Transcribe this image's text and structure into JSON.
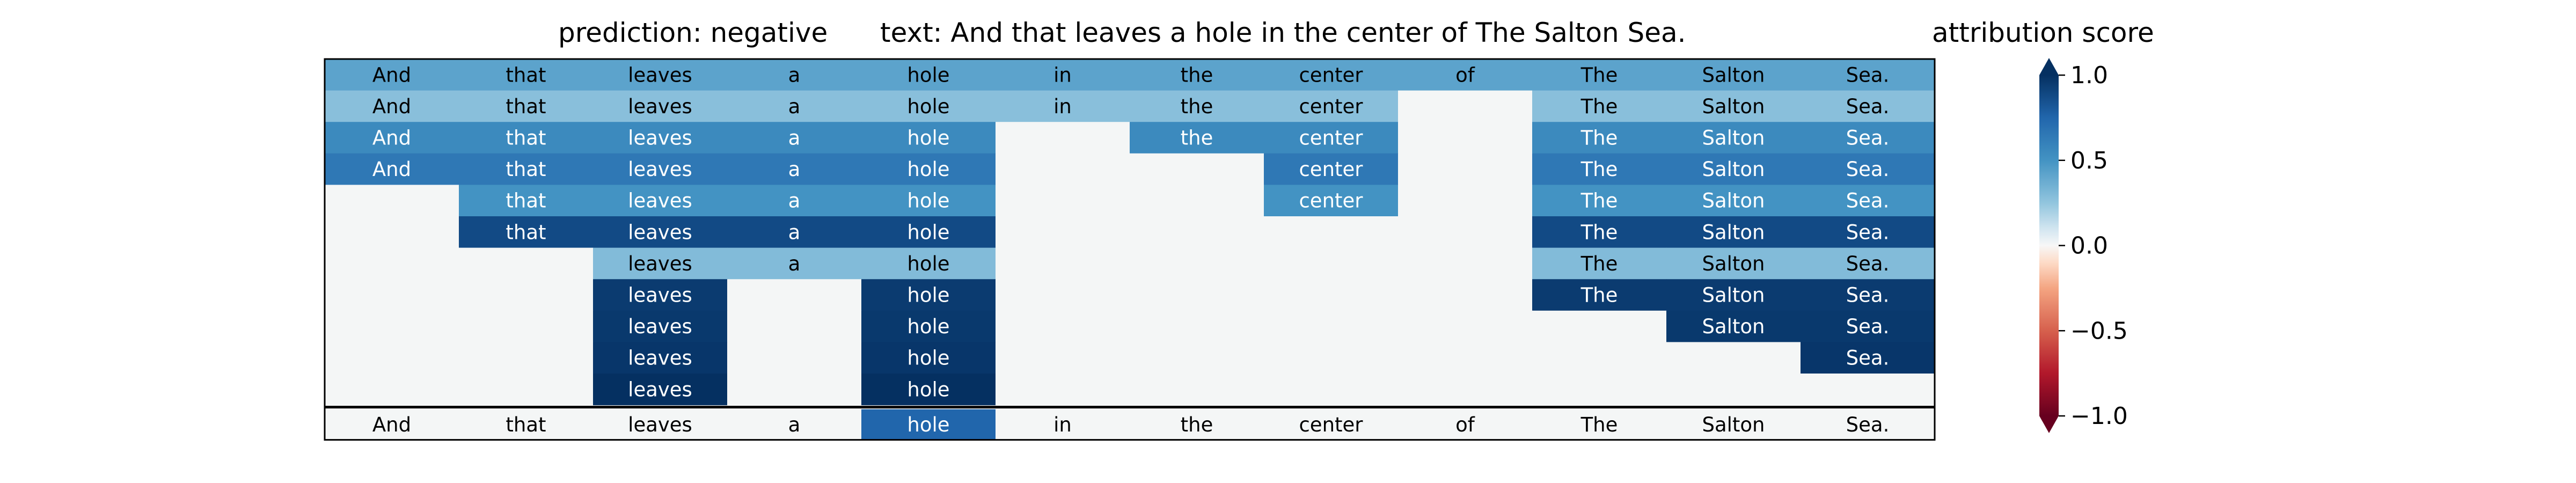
{
  "chart_data": {
    "type": "heatmap",
    "title_prediction": "prediction:  negative",
    "title_text": "text:  And that leaves a hole in the center of The Salton Sea.",
    "colorbar_label": "attribution score",
    "colorbar_ticks": [
      "1.0",
      "0.5",
      "0.0",
      "−0.5",
      "−1.0"
    ],
    "colorbar_tick_values": [
      1.0,
      0.5,
      0.0,
      -0.5,
      -1.0
    ],
    "vmin": -1.0,
    "vmax": 1.0,
    "colormap": "RdBu",
    "tokens": [
      "And",
      "that",
      "leaves",
      "a",
      "hole",
      "in",
      "the",
      "center",
      "of",
      "The",
      "Salton",
      "Sea."
    ],
    "rows": [
      [
        0.42,
        0.42,
        0.42,
        0.42,
        0.42,
        0.42,
        0.42,
        0.42,
        0.42,
        0.42,
        0.42,
        0.42
      ],
      [
        0.28,
        0.28,
        0.28,
        0.28,
        0.28,
        0.28,
        0.28,
        0.28,
        null,
        0.28,
        0.28,
        0.28
      ],
      [
        0.55,
        0.55,
        0.55,
        0.55,
        0.55,
        null,
        0.55,
        0.55,
        null,
        0.55,
        0.55,
        0.55
      ],
      [
        0.65,
        0.65,
        0.65,
        0.65,
        0.65,
        null,
        null,
        0.65,
        null,
        0.65,
        0.65,
        0.65
      ],
      [
        null,
        0.5,
        0.5,
        0.5,
        0.5,
        null,
        null,
        0.5,
        null,
        0.5,
        0.5,
        0.5
      ],
      [
        null,
        0.88,
        0.88,
        0.88,
        0.88,
        null,
        null,
        null,
        null,
        0.88,
        0.88,
        0.88
      ],
      [
        null,
        null,
        0.3,
        0.3,
        0.3,
        null,
        null,
        null,
        null,
        0.3,
        0.3,
        0.3
      ],
      [
        null,
        null,
        0.95,
        null,
        0.95,
        null,
        null,
        null,
        null,
        0.95,
        0.95,
        0.95
      ],
      [
        null,
        null,
        0.96,
        null,
        0.96,
        null,
        null,
        null,
        null,
        null,
        0.96,
        0.96
      ],
      [
        null,
        null,
        0.97,
        null,
        0.97,
        null,
        null,
        null,
        null,
        null,
        null,
        0.97
      ],
      [
        null,
        null,
        1.0,
        null,
        1.0,
        null,
        null,
        null,
        null,
        null,
        null,
        null
      ]
    ],
    "summary_row": [
      0,
      0,
      0,
      0,
      0.75,
      0,
      0,
      0,
      0,
      0,
      0,
      0
    ]
  }
}
